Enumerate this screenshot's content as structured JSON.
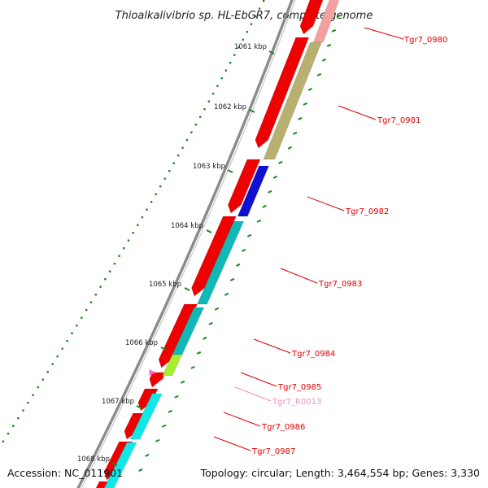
{
  "title": "Thioalkalivibrio sp. HL-EbGR7, complete genome",
  "footer": {
    "accession": "Accession: NC_011901",
    "summary": "Topology: circular; Length: 3,464,554 bp; Genes: 3,330"
  },
  "scale_labels": [
    {
      "text": "1061 kbp"
    },
    {
      "text": "1062 kbp"
    },
    {
      "text": "1063 kbp"
    },
    {
      "text": "1064 kbp"
    },
    {
      "text": "1065 kbp"
    },
    {
      "text": "1066 kbp"
    },
    {
      "text": "1067 kbp"
    },
    {
      "text": "1068 kbp"
    }
  ],
  "gene_labels": [
    {
      "text": "Tgr7_0980",
      "color": "#e00000"
    },
    {
      "text": "Tgr7_0981",
      "color": "#e00000"
    },
    {
      "text": "Tgr7_0982",
      "color": "#e00000"
    },
    {
      "text": "Tgr7_0983",
      "color": "#e00000"
    },
    {
      "text": "Tgr7_0984",
      "color": "#e00000"
    },
    {
      "text": "Tgr7_0985",
      "color": "#e00000"
    },
    {
      "text": "Tgr7_R0013",
      "color": "#f08cc0"
    },
    {
      "text": "Tgr7_0986",
      "color": "#e00000"
    },
    {
      "text": "Tgr7_0987",
      "color": "#e00000"
    }
  ],
  "colors": {
    "backbone": "#8c8c8c",
    "cds_outer": "#ee0000",
    "tick": "#1a8a1a",
    "cog_khaki": "#b8b070",
    "cog_blue": "#1010d0",
    "cog_teal": "#10b8b8",
    "cog_lime": "#a8ee30",
    "cog_cyan": "#10e8e8",
    "cog_pink": "#f4a0a0"
  }
}
